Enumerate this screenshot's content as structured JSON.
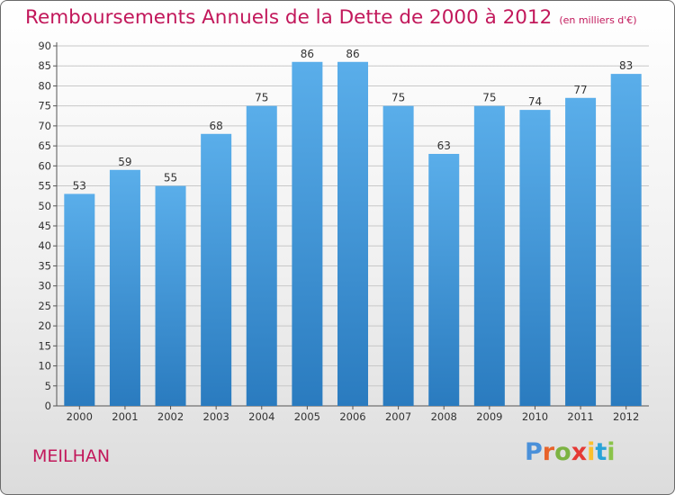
{
  "header": {
    "title": "Remboursements Annuels de la Dette de 2000 à 2012",
    "unit": "(en milliers d'€)"
  },
  "footer": {
    "commune": "MEILHAN",
    "logo": {
      "letters": [
        "P",
        "r",
        "o",
        "x",
        "i",
        "t",
        "i"
      ],
      "colors": [
        "#4a90d9",
        "#e8632a",
        "#7cb342",
        "#e53935",
        "#fbc02d",
        "#29a3d8",
        "#8bc34a"
      ]
    }
  },
  "chart_data": {
    "type": "bar",
    "title": "Remboursements Annuels de la Dette de 2000 à 2012",
    "categories": [
      "2000",
      "2001",
      "2002",
      "2003",
      "2004",
      "2005",
      "2006",
      "2007",
      "2008",
      "2009",
      "2010",
      "2011",
      "2012"
    ],
    "values": [
      53,
      59,
      55,
      68,
      75,
      86,
      86,
      75,
      63,
      75,
      74,
      77,
      83
    ],
    "ylim": [
      0,
      90
    ],
    "yticks": [
      0,
      5,
      10,
      15,
      20,
      25,
      30,
      35,
      40,
      45,
      50,
      55,
      60,
      65,
      70,
      75,
      80,
      85,
      90
    ],
    "grid": true,
    "bar_color": "#3b8fd6"
  }
}
